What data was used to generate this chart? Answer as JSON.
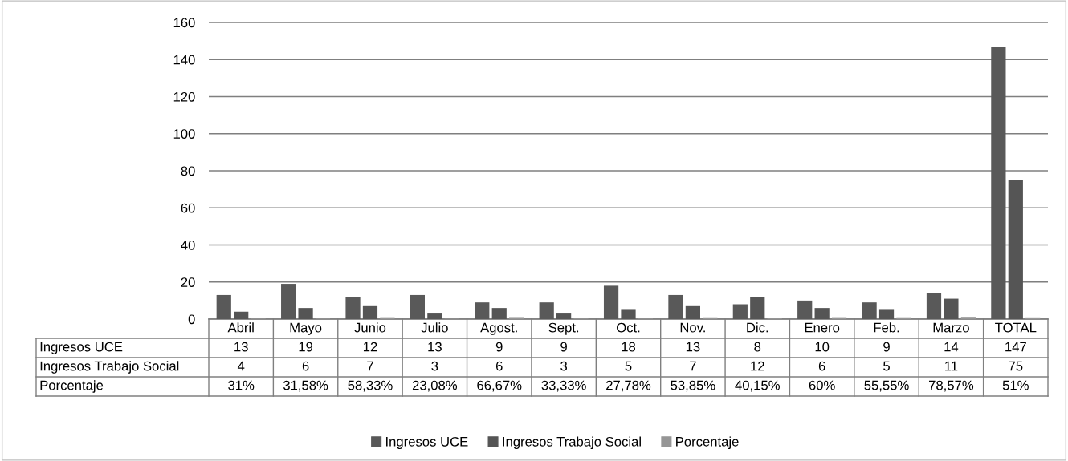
{
  "chart_data": {
    "type": "bar",
    "categories": [
      "Abril",
      "Mayo",
      "Junio",
      "Julio",
      "Agost.",
      "Sept.",
      "Oct.",
      "Nov.",
      "Dic.",
      "Enero",
      "Feb.",
      "Marzo",
      "TOTAL"
    ],
    "series": [
      {
        "name": "Ingresos UCE",
        "color": "#595959",
        "values": [
          13,
          19,
          12,
          13,
          9,
          9,
          18,
          13,
          8,
          10,
          9,
          14,
          147
        ],
        "value_labels": [
          "13",
          "19",
          "12",
          "13",
          "9",
          "9",
          "18",
          "13",
          "8",
          "10",
          "9",
          "14",
          "147"
        ]
      },
      {
        "name": "Ingresos Trabajo Social",
        "color": "#555555",
        "values": [
          4,
          6,
          7,
          3,
          6,
          3,
          5,
          7,
          12,
          6,
          5,
          11,
          75
        ],
        "value_labels": [
          "4",
          "6",
          "7",
          "3",
          "6",
          "3",
          "5",
          "7",
          "12",
          "6",
          "5",
          "11",
          "75"
        ]
      },
      {
        "name": "Porcentaje",
        "color": "#969696",
        "values": [
          0.31,
          0.3158,
          0.5833,
          0.2308,
          0.6667,
          0.3333,
          0.2778,
          0.5385,
          0.4015,
          0.6,
          0.5555,
          0.7857,
          0.51
        ],
        "value_labels": [
          "31%",
          "31,58%",
          "58,33%",
          "23,08%",
          "66,67%",
          "33,33%",
          "27,78%",
          "53,85%",
          "40,15%",
          "60%",
          "55,55%",
          "78,57%",
          "51%"
        ]
      }
    ],
    "ylim": [
      0,
      160
    ],
    "yticks": [
      0,
      20,
      40,
      60,
      80,
      100,
      120,
      140,
      160
    ],
    "grid": "y",
    "legend": "bottom"
  }
}
